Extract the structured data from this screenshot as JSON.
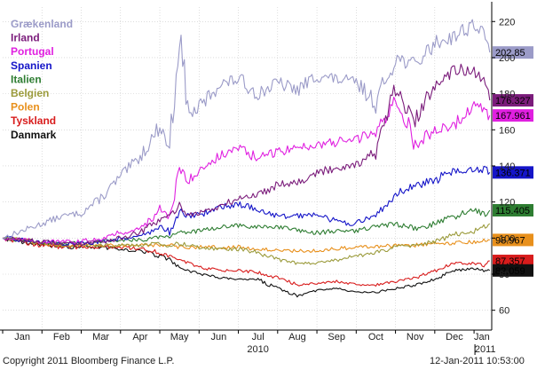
{
  "chart_data": {
    "type": "line",
    "title": "",
    "xlabel": "",
    "ylabel": "",
    "ylim": [
      50,
      228
    ],
    "yticks": [
      60,
      80,
      100,
      120,
      140,
      160,
      180,
      200,
      220
    ],
    "grid": true,
    "legend_position": "top-left",
    "x_month_labels": [
      "Jan",
      "Feb",
      "Mar",
      "Apr",
      "May",
      "Jun",
      "Jul",
      "Aug",
      "Sep",
      "Oct",
      "Nov",
      "Dec",
      "Jan"
    ],
    "year_labels": [
      "2010",
      "2011"
    ],
    "x": [
      0,
      0.5,
      1,
      1.5,
      2,
      2.5,
      3,
      3.5,
      4,
      4.25,
      4.5,
      4.75,
      5,
      5.5,
      6,
      6.5,
      7,
      7.5,
      8,
      8.5,
      9,
      9.5,
      10,
      10.5,
      11,
      11.5,
      12,
      12.25,
      12.4
    ],
    "series": [
      {
        "name": "Grækenland",
        "color": "#9b9bc8",
        "last_label": "202.85",
        "values": [
          100,
          104,
          108,
          112,
          114,
          122,
          134,
          145,
          162,
          150,
          212,
          168,
          172,
          185,
          188,
          180,
          186,
          182,
          190,
          188,
          186,
          175,
          200,
          196,
          208,
          212,
          219,
          212,
          202.85
        ]
      },
      {
        "name": "Irland",
        "color": "#7b1c7b",
        "last_label": "176.327",
        "values": [
          100,
          99,
          98,
          97,
          97,
          98,
          100,
          103,
          110,
          112,
          118,
          113,
          114,
          117,
          122,
          124,
          130,
          131,
          136,
          139,
          141,
          148,
          182,
          164,
          186,
          194,
          191,
          186,
          176.327
        ]
      },
      {
        "name": "Portugal",
        "color": "#e020e0",
        "last_label": "167.961",
        "values": [
          100,
          99,
          98,
          98,
          98,
          100,
          103,
          105,
          116,
          110,
          138,
          132,
          138,
          145,
          150,
          144,
          148,
          150,
          152,
          153,
          155,
          158,
          178,
          152,
          160,
          163,
          174,
          170,
          167.961
        ]
      },
      {
        "name": "Spanien",
        "color": "#1515c8",
        "last_label": "136.371",
        "values": [
          100,
          99,
          98,
          97,
          97,
          98,
          100,
          101,
          106,
          104,
          115,
          112,
          113,
          117,
          119,
          116,
          112,
          112,
          114,
          109,
          108,
          112,
          125,
          129,
          132,
          138,
          137,
          138,
          136.371
        ]
      },
      {
        "name": "Italien",
        "color": "#2e7d32",
        "last_label": "115.405",
        "values": [
          100,
          99,
          98,
          97,
          97,
          98,
          99,
          99,
          101,
          101,
          104,
          103,
          104,
          106,
          107,
          106,
          106,
          104,
          103,
          104,
          104,
          106,
          108,
          105,
          108,
          112,
          116,
          113,
          115.405
        ]
      },
      {
        "name": "Belgien",
        "color": "#9b9b3c",
        "last_label": "",
        "values": [
          100,
          99,
          97,
          96,
          96,
          96,
          96,
          96,
          97,
          96,
          97,
          96,
          95,
          94,
          94,
          92,
          88,
          86,
          86,
          88,
          90,
          92,
          95,
          96,
          98,
          102,
          104,
          106,
          108
        ]
      },
      {
        "name": "Polen",
        "color": "#e8901c",
        "last_label": "98.967",
        "values": [
          100,
          99,
          97,
          96,
          96,
          96,
          96,
          96,
          96,
          96,
          95,
          95,
          95,
          95,
          95,
          94,
          93,
          93,
          93,
          94,
          95,
          95,
          96,
          96,
          97,
          97,
          98,
          98.5,
          98.967
        ]
      },
      {
        "name": "Tyskland",
        "color": "#d81c1c",
        "last_label": "87.357",
        "values": [
          100,
          98,
          96,
          95,
          95,
          95,
          95,
          94,
          92,
          90,
          88,
          86,
          84,
          82,
          82,
          81,
          78,
          74,
          75,
          76,
          74,
          74,
          76,
          78,
          82,
          86,
          86,
          85,
          87.357
        ]
      },
      {
        "name": "Danmark",
        "color": "#111111",
        "last_label": "82.059",
        "values": [
          100,
          98,
          96,
          95,
          95,
          95,
          94,
          93,
          90,
          88,
          84,
          82,
          80,
          78,
          77,
          77,
          72,
          68,
          71,
          72,
          70,
          70,
          72,
          74,
          77,
          82,
          83,
          82,
          82.059
        ]
      }
    ]
  },
  "footer": {
    "copyright": "Copyright 2011 Bloomberg Finance L.P.",
    "timestamp": "12-Jan-2011 10:53:00"
  }
}
